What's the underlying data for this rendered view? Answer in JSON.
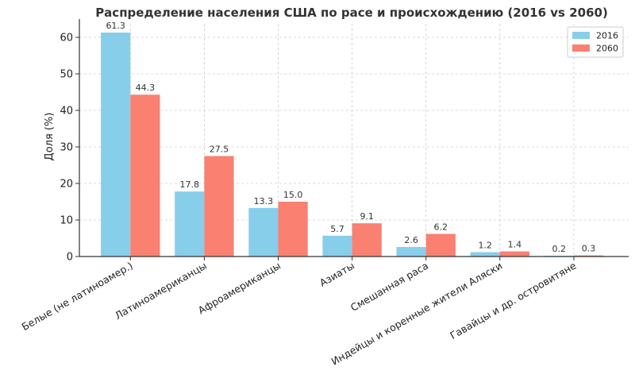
{
  "chart_data": {
    "type": "bar",
    "title": "Распределение населения США по расе и происхождению (2016 vs 2060)",
    "xlabel": "",
    "ylabel": "Доля (%)",
    "ylim": [
      0,
      65
    ],
    "yticks": [
      0,
      10,
      20,
      30,
      40,
      50,
      60
    ],
    "grid": true,
    "legend_position": "top-right",
    "categories": [
      "Белые (не латиноамер.)",
      "Латиноамериканцы",
      "Афроамериканцы",
      "Азиаты",
      "Смешанная раса",
      "Индейцы и коренные жители Аляски",
      "Гавайцы и др. островитяне"
    ],
    "series": [
      {
        "name": "2016",
        "color": "#87CEEB",
        "values": [
          61.3,
          17.8,
          13.3,
          5.7,
          2.6,
          1.2,
          0.2
        ]
      },
      {
        "name": "2060",
        "color": "#FA8072",
        "values": [
          44.3,
          27.5,
          15.0,
          9.1,
          6.2,
          1.4,
          0.3
        ]
      }
    ]
  }
}
